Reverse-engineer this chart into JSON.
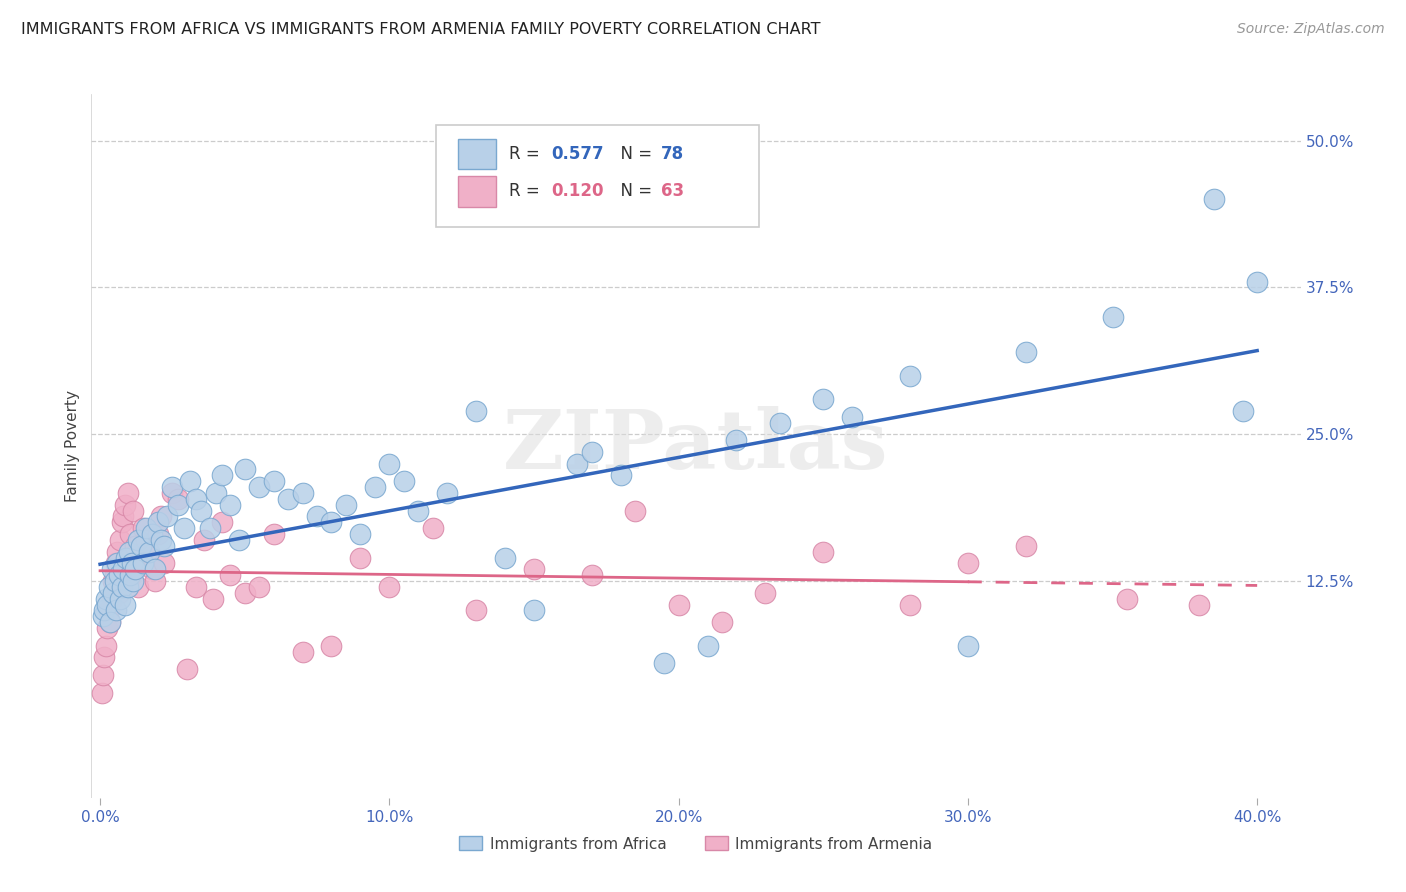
{
  "title": "IMMIGRANTS FROM AFRICA VS IMMIGRANTS FROM ARMENIA FAMILY POVERTY CORRELATION CHART",
  "source": "Source: ZipAtlas.com",
  "ylabel": "Family Poverty",
  "xlabel_ticks": [
    "0.0%",
    "10.0%",
    "20.0%",
    "30.0%",
    "40.0%"
  ],
  "xlabel_vals": [
    0.0,
    10.0,
    20.0,
    30.0,
    40.0
  ],
  "ylabel_ticks_right": [
    "12.5%",
    "25.0%",
    "37.5%",
    "50.0%"
  ],
  "ylabel_vals_right": [
    12.5,
    25.0,
    37.5,
    50.0
  ],
  "ylabel_gridlines": [
    12.5,
    25.0,
    37.5,
    50.0
  ],
  "xlim": [
    -0.3,
    41.5
  ],
  "ylim": [
    -6,
    54
  ],
  "africa_R": 0.577,
  "africa_N": 78,
  "armenia_R": 0.12,
  "armenia_N": 63,
  "africa_color": "#b8d0e8",
  "africa_edge": "#7aa8d0",
  "armenia_color": "#f0b0c8",
  "armenia_edge": "#d888a8",
  "africa_line_color": "#3366bb",
  "armenia_line_color": "#dd6688",
  "armenia_line_solid_end": 30.0,
  "watermark": "ZIPatlas",
  "africa_x": [
    0.1,
    0.15,
    0.2,
    0.25,
    0.3,
    0.35,
    0.4,
    0.45,
    0.5,
    0.55,
    0.6,
    0.65,
    0.7,
    0.75,
    0.8,
    0.85,
    0.9,
    0.95,
    1.0,
    1.05,
    1.1,
    1.15,
    1.2,
    1.3,
    1.4,
    1.5,
    1.6,
    1.7,
    1.8,
    1.9,
    2.0,
    2.1,
    2.2,
    2.3,
    2.5,
    2.7,
    2.9,
    3.1,
    3.3,
    3.5,
    3.8,
    4.0,
    4.2,
    4.5,
    4.8,
    5.0,
    5.5,
    6.0,
    6.5,
    7.0,
    7.5,
    8.0,
    8.5,
    9.0,
    9.5,
    10.0,
    10.5,
    11.0,
    12.0,
    13.0,
    14.0,
    15.0,
    16.5,
    17.0,
    18.0,
    19.5,
    21.0,
    22.0,
    23.5,
    25.0,
    26.0,
    28.0,
    30.0,
    32.0,
    35.0,
    38.5,
    39.5,
    40.0
  ],
  "africa_y": [
    9.5,
    10.0,
    11.0,
    10.5,
    12.0,
    9.0,
    13.5,
    11.5,
    12.5,
    10.0,
    14.0,
    13.0,
    11.0,
    12.0,
    13.5,
    10.5,
    14.5,
    12.0,
    15.0,
    13.0,
    14.0,
    12.5,
    13.5,
    16.0,
    15.5,
    14.0,
    17.0,
    15.0,
    16.5,
    13.5,
    17.5,
    16.0,
    15.5,
    18.0,
    20.5,
    19.0,
    17.0,
    21.0,
    19.5,
    18.5,
    17.0,
    20.0,
    21.5,
    19.0,
    16.0,
    22.0,
    20.5,
    21.0,
    19.5,
    20.0,
    18.0,
    17.5,
    19.0,
    16.5,
    20.5,
    22.5,
    21.0,
    18.5,
    20.0,
    27.0,
    14.5,
    10.0,
    22.5,
    23.5,
    21.5,
    5.5,
    7.0,
    24.5,
    26.0,
    28.0,
    26.5,
    30.0,
    7.0,
    32.0,
    35.0,
    45.0,
    27.0,
    38.0
  ],
  "armenia_x": [
    0.05,
    0.1,
    0.15,
    0.2,
    0.25,
    0.3,
    0.35,
    0.4,
    0.45,
    0.5,
    0.55,
    0.6,
    0.65,
    0.7,
    0.75,
    0.8,
    0.85,
    0.9,
    0.95,
    1.0,
    1.05,
    1.1,
    1.15,
    1.2,
    1.3,
    1.4,
    1.5,
    1.6,
    1.7,
    1.8,
    1.9,
    2.0,
    2.1,
    2.2,
    2.5,
    2.7,
    3.0,
    3.3,
    3.6,
    3.9,
    4.2,
    4.5,
    5.0,
    5.5,
    6.0,
    7.0,
    8.0,
    9.0,
    10.0,
    11.5,
    13.0,
    15.0,
    17.0,
    18.5,
    20.0,
    21.5,
    23.0,
    25.0,
    28.0,
    30.0,
    32.0,
    35.5,
    38.0
  ],
  "armenia_y": [
    3.0,
    4.5,
    6.0,
    7.0,
    8.5,
    10.0,
    9.0,
    11.0,
    12.5,
    13.0,
    14.0,
    15.0,
    11.5,
    16.0,
    17.5,
    18.0,
    19.0,
    13.5,
    20.0,
    14.5,
    16.5,
    13.0,
    18.5,
    15.5,
    12.0,
    14.0,
    17.0,
    16.0,
    15.0,
    13.5,
    12.5,
    16.5,
    18.0,
    14.0,
    20.0,
    19.5,
    5.0,
    12.0,
    16.0,
    11.0,
    17.5,
    13.0,
    11.5,
    12.0,
    16.5,
    6.5,
    7.0,
    14.5,
    12.0,
    17.0,
    10.0,
    13.5,
    13.0,
    18.5,
    10.5,
    9.0,
    11.5,
    15.0,
    10.5,
    14.0,
    15.5,
    11.0,
    10.5
  ]
}
